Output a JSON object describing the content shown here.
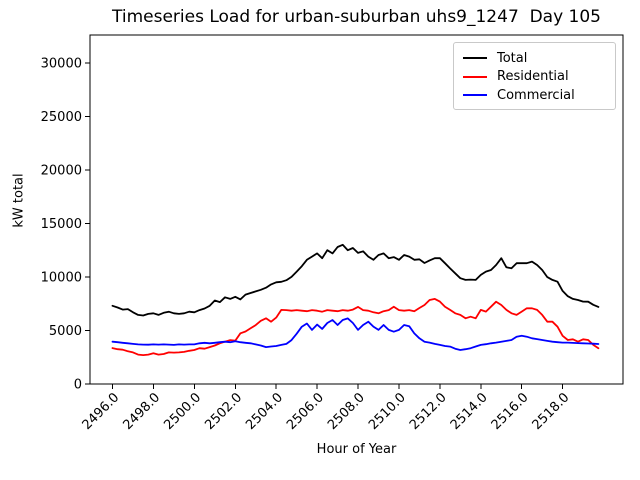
{
  "title": "Timeseries Load for urban-suburban uhs9_1247  Day 105",
  "chart_data": {
    "type": "line",
    "title": "Timeseries Load for urban-suburban uhs9_1247  Day 105",
    "xlabel": "Hour of Year",
    "ylabel": "kW total",
    "xlim": [
      2494.9,
      2520.95
    ],
    "ylim": [
      0,
      32600
    ],
    "grid": false,
    "legend_position": "upper right",
    "x_ticks": [
      2496,
      2498,
      2500,
      2502,
      2504,
      2506,
      2508,
      2510,
      2512,
      2514,
      2516,
      2518
    ],
    "x_tick_labels": [
      "2496.0",
      "2498.0",
      "2500.0",
      "2502.0",
      "2504.0",
      "2506.0",
      "2508.0",
      "2510.0",
      "2512.0",
      "2514.0",
      "2516.0",
      "2518.0"
    ],
    "y_ticks": [
      0,
      5000,
      10000,
      15000,
      20000,
      25000,
      30000
    ],
    "x": [
      2496,
      2496.25,
      2496.5,
      2496.75,
      2497,
      2497.25,
      2497.5,
      2497.75,
      2498,
      2498.25,
      2498.5,
      2498.75,
      2499,
      2499.25,
      2499.5,
      2499.75,
      2500,
      2500.25,
      2500.5,
      2500.75,
      2501,
      2501.25,
      2501.5,
      2501.75,
      2502,
      2502.25,
      2502.5,
      2502.75,
      2503,
      2503.25,
      2503.5,
      2503.75,
      2504,
      2504.25,
      2504.5,
      2504.75,
      2505,
      2505.25,
      2505.5,
      2505.75,
      2506,
      2506.25,
      2506.5,
      2506.75,
      2507,
      2507.25,
      2507.5,
      2507.75,
      2508,
      2508.25,
      2508.5,
      2508.75,
      2509,
      2509.25,
      2509.5,
      2509.75,
      2510,
      2510.25,
      2510.5,
      2510.75,
      2511,
      2511.25,
      2511.5,
      2511.75,
      2512,
      2512.25,
      2512.5,
      2512.75,
      2513,
      2513.25,
      2513.5,
      2513.75,
      2514,
      2514.25,
      2514.5,
      2514.75,
      2515,
      2515.25,
      2515.5,
      2515.75,
      2516,
      2516.25,
      2516.5,
      2516.75,
      2517,
      2517.25,
      2517.5,
      2517.75,
      2518,
      2518.25,
      2518.5,
      2518.75,
      2519,
      2519.25,
      2519.5,
      2519.75
    ],
    "series": [
      {
        "name": "Total",
        "color": "#000000",
        "values": [
          7300,
          7150,
          6950,
          7000,
          6700,
          6450,
          6400,
          6550,
          6600,
          6450,
          6650,
          6750,
          6600,
          6550,
          6600,
          6750,
          6700,
          6900,
          7050,
          7300,
          7800,
          7650,
          8100,
          7950,
          8150,
          7900,
          8350,
          8500,
          8650,
          8800,
          9000,
          9300,
          9500,
          9550,
          9700,
          10000,
          10500,
          11000,
          11600,
          11900,
          12200,
          11750,
          12500,
          12200,
          12800,
          13000,
          12500,
          12700,
          12250,
          12400,
          11900,
          11600,
          12050,
          12200,
          11750,
          11850,
          11600,
          12050,
          11900,
          11600,
          11650,
          11300,
          11550,
          11750,
          11750,
          11280,
          10800,
          10340,
          9880,
          9720,
          9750,
          9720,
          10190,
          10500,
          10650,
          11120,
          11750,
          10900,
          10810,
          11280,
          11280,
          11280,
          11430,
          11120,
          10650,
          9990,
          9720,
          9560,
          8700,
          8200,
          7950,
          7850,
          7700,
          7690,
          7400,
          7200
        ]
      },
      {
        "name": "Residential",
        "color": "#ff0000",
        "values": [
          3350,
          3250,
          3200,
          3050,
          2950,
          2750,
          2700,
          2750,
          2870,
          2750,
          2800,
          2950,
          2930,
          2950,
          3000,
          3100,
          3180,
          3340,
          3300,
          3450,
          3600,
          3800,
          3950,
          4100,
          4050,
          4740,
          4900,
          5200,
          5500,
          5900,
          6140,
          5820,
          6200,
          6920,
          6900,
          6850,
          6900,
          6850,
          6800,
          6900,
          6850,
          6750,
          6900,
          6850,
          6800,
          6900,
          6850,
          6950,
          7200,
          6900,
          6850,
          6700,
          6600,
          6800,
          6900,
          7220,
          6900,
          6850,
          6900,
          6800,
          7100,
          7380,
          7850,
          7950,
          7700,
          7220,
          6920,
          6600,
          6450,
          6140,
          6290,
          6140,
          6920,
          6760,
          7220,
          7690,
          7380,
          6920,
          6600,
          6450,
          6760,
          7070,
          7070,
          6920,
          6450,
          5820,
          5820,
          5350,
          4500,
          4110,
          4180,
          3950,
          4180,
          4110,
          3650,
          3340
        ]
      },
      {
        "name": "Commercial",
        "color": "#0000ff",
        "values": [
          3950,
          3900,
          3850,
          3800,
          3750,
          3700,
          3680,
          3670,
          3700,
          3680,
          3700,
          3680,
          3650,
          3700,
          3680,
          3700,
          3700,
          3800,
          3850,
          3800,
          3850,
          3900,
          3950,
          3900,
          4000,
          3900,
          3850,
          3800,
          3700,
          3600,
          3450,
          3500,
          3550,
          3650,
          3750,
          4100,
          4700,
          5350,
          5650,
          5050,
          5550,
          5150,
          5700,
          5980,
          5510,
          5980,
          6130,
          5700,
          5050,
          5510,
          5820,
          5360,
          5050,
          5510,
          5050,
          4890,
          5050,
          5510,
          5400,
          4730,
          4270,
          3950,
          3870,
          3750,
          3650,
          3550,
          3490,
          3300,
          3180,
          3250,
          3340,
          3500,
          3650,
          3720,
          3800,
          3870,
          3950,
          4030,
          4110,
          4420,
          4500,
          4420,
          4270,
          4190,
          4110,
          4030,
          3950,
          3900,
          3870,
          3870,
          3840,
          3820,
          3800,
          3780,
          3760,
          3740
        ]
      }
    ]
  }
}
